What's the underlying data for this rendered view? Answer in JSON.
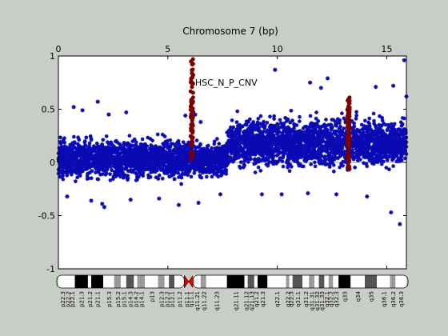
{
  "colors": {
    "background": "#c9cdc8",
    "plot_bg": "#ffffff",
    "points": "#0a0ab5",
    "cnv": "#7a0000",
    "zero_line": "#9a9a9a",
    "centromere": "#e00000"
  },
  "chart_data": {
    "type": "scatter",
    "title": "Chromosome 7 (bp)",
    "xlabel": "Chromosome 7 (bp)",
    "ylabel": "",
    "xlim": [
      0,
      15.9
    ],
    "ylim": [
      -1,
      1
    ],
    "xticks": [
      0,
      5,
      10,
      15
    ],
    "yticks": [
      -1,
      -0.5,
      0,
      0.5,
      1
    ],
    "annotation": "HSC_N_P_CNV",
    "series": [
      {
        "segment": "left",
        "x_range": [
          0,
          6.0
        ],
        "band_min": -0.25,
        "band_max": 0.32,
        "outliers": [
          [
            0.7,
            0.52
          ],
          [
            1.1,
            0.49
          ],
          [
            1.8,
            0.57
          ],
          [
            2.3,
            0.45
          ],
          [
            3.1,
            0.47
          ],
          [
            0.4,
            -0.32
          ],
          [
            1.5,
            -0.36
          ],
          [
            2.1,
            -0.42
          ],
          [
            2.0,
            -0.39
          ],
          [
            3.3,
            -0.35
          ],
          [
            4.6,
            -0.34
          ],
          [
            5.5,
            -0.4
          ],
          [
            5.8,
            0.44
          ]
        ]
      },
      {
        "segment": "middle",
        "x_range": [
          6.05,
          7.7
        ],
        "band_min": -0.22,
        "band_max": 0.28,
        "outliers": [
          [
            6.25,
            0.45
          ],
          [
            6.5,
            0.38
          ],
          [
            7.4,
            -0.3
          ],
          [
            6.4,
            -0.38
          ]
        ]
      },
      {
        "segment": "right",
        "x_range": [
          7.7,
          15.9
        ],
        "band_min": -0.18,
        "band_max": 0.55,
        "outliers": [
          [
            9.9,
            0.87
          ],
          [
            12.3,
            0.79
          ],
          [
            12.0,
            0.7
          ],
          [
            11.5,
            0.75
          ],
          [
            14.5,
            0.71
          ],
          [
            15.3,
            0.72
          ],
          [
            15.8,
            0.96
          ],
          [
            15.9,
            0.62
          ],
          [
            9.3,
            -0.3
          ],
          [
            10.2,
            -0.3
          ],
          [
            11.4,
            -0.29
          ],
          [
            14.1,
            -0.32
          ],
          [
            15.6,
            -0.58
          ],
          [
            15.2,
            -0.47
          ],
          [
            12.7,
            -0.3
          ]
        ]
      }
    ],
    "cnv_regions": [
      {
        "x": 6.1,
        "y_min": 0.02,
        "y_max": 0.97
      },
      {
        "x": 13.25,
        "y_min": -0.08,
        "y_max": 0.62
      }
    ],
    "ideogram": {
      "bands": [
        {
          "label": "p22.3",
          "start": 0.0,
          "end": 0.35,
          "shade": "white"
        },
        {
          "label": "p22.2",
          "start": 0.35,
          "end": 0.5,
          "shade": "white"
        },
        {
          "label": "p22.1",
          "start": 0.5,
          "end": 0.75,
          "shade": "white"
        },
        {
          "label": "p21.3",
          "start": 0.75,
          "end": 1.35,
          "shade": "black"
        },
        {
          "label": "p21.2",
          "start": 1.35,
          "end": 1.5,
          "shade": "white"
        },
        {
          "label": "p21.1",
          "start": 1.5,
          "end": 2.05,
          "shade": "black"
        },
        {
          "label": "p15.3",
          "start": 2.05,
          "end": 2.55,
          "shade": "white"
        },
        {
          "label": "p15.2",
          "start": 2.55,
          "end": 2.85,
          "shade": "gray"
        },
        {
          "label": "p15.1",
          "start": 2.85,
          "end": 3.1,
          "shade": "white"
        },
        {
          "label": "p14.3",
          "start": 3.1,
          "end": 3.45,
          "shade": "dark"
        },
        {
          "label": "p14.2",
          "start": 3.45,
          "end": 3.6,
          "shade": "white"
        },
        {
          "label": "p14.1",
          "start": 3.6,
          "end": 3.95,
          "shade": "gray"
        },
        {
          "label": "p13",
          "start": 3.95,
          "end": 4.55,
          "shade": "white"
        },
        {
          "label": "p12.3",
          "start": 4.55,
          "end": 4.85,
          "shade": "gray"
        },
        {
          "label": "p12.2",
          "start": 4.85,
          "end": 5.05,
          "shade": "white"
        },
        {
          "label": "p12.1",
          "start": 5.05,
          "end": 5.3,
          "shade": "dark"
        },
        {
          "label": "p11.2",
          "start": 5.3,
          "end": 5.75,
          "shade": "white"
        },
        {
          "label": "p11.1",
          "start": 5.75,
          "end": 5.95,
          "shade": "centromere"
        },
        {
          "label": "q11.1",
          "start": 5.95,
          "end": 6.15,
          "shade": "centromere"
        },
        {
          "label": "q11.21",
          "start": 6.15,
          "end": 6.5,
          "shade": "white"
        },
        {
          "label": "q11.22",
          "start": 6.5,
          "end": 6.75,
          "shade": "gray"
        },
        {
          "label": "q11.23",
          "start": 6.75,
          "end": 7.7,
          "shade": "white"
        },
        {
          "label": "q21.11",
          "start": 7.7,
          "end": 8.5,
          "shade": "black"
        },
        {
          "label": "q21.12",
          "start": 8.5,
          "end": 8.65,
          "shade": "white"
        },
        {
          "label": "q21.13",
          "start": 8.65,
          "end": 8.95,
          "shade": "dark"
        },
        {
          "label": "q21.2",
          "start": 8.95,
          "end": 9.1,
          "shade": "white"
        },
        {
          "label": "q21.3",
          "start": 9.1,
          "end": 9.55,
          "shade": "black"
        },
        {
          "label": "q22.1",
          "start": 9.55,
          "end": 10.4,
          "shade": "white"
        },
        {
          "label": "q22.2",
          "start": 10.4,
          "end": 10.55,
          "shade": "gray"
        },
        {
          "label": "q22.3",
          "start": 10.55,
          "end": 10.7,
          "shade": "white"
        },
        {
          "label": "q31.1",
          "start": 10.7,
          "end": 11.15,
          "shade": "dark"
        },
        {
          "label": "q31.2",
          "start": 11.15,
          "end": 11.45,
          "shade": "white"
        },
        {
          "label": "q31.31",
          "start": 11.45,
          "end": 11.7,
          "shade": "gray"
        },
        {
          "label": "q31.32",
          "start": 11.7,
          "end": 11.9,
          "shade": "white"
        },
        {
          "label": "q31.33",
          "start": 11.9,
          "end": 12.15,
          "shade": "dark"
        },
        {
          "label": "q32.1",
          "start": 12.15,
          "end": 12.35,
          "shade": "white"
        },
        {
          "label": "q32.2",
          "start": 12.35,
          "end": 12.55,
          "shade": "gray"
        },
        {
          "label": "q32.3",
          "start": 12.55,
          "end": 12.8,
          "shade": "white"
        },
        {
          "label": "q33",
          "start": 12.8,
          "end": 13.35,
          "shade": "black"
        },
        {
          "label": "q34",
          "start": 13.35,
          "end": 14.0,
          "shade": "white"
        },
        {
          "label": "q35",
          "start": 14.0,
          "end": 14.55,
          "shade": "dark"
        },
        {
          "label": "q36.1",
          "start": 14.55,
          "end": 15.15,
          "shade": "white"
        },
        {
          "label": "q36.2",
          "start": 15.15,
          "end": 15.4,
          "shade": "gray"
        },
        {
          "label": "q36.3",
          "start": 15.4,
          "end": 15.9,
          "shade": "white"
        }
      ]
    }
  }
}
